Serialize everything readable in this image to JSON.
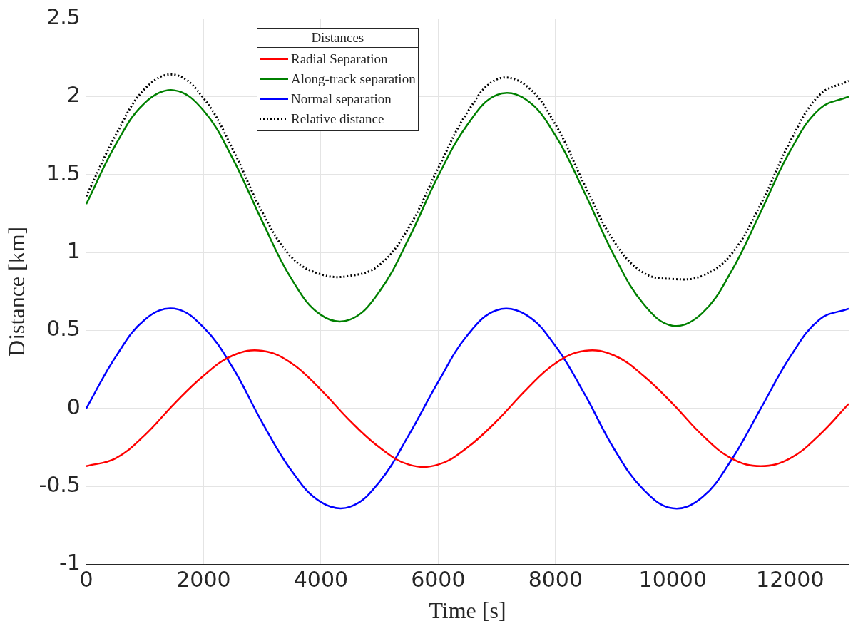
{
  "chart_data": {
    "type": "line",
    "xlabel": "Time [s]",
    "ylabel": "Distance [km]",
    "legend_title": "Distances",
    "legend": "top left",
    "grid": true,
    "marker": "none",
    "x": [
      0,
      500,
      1000,
      1500,
      2000,
      2500,
      3000,
      3500,
      4000,
      4500,
      5000,
      5500,
      6000,
      6500,
      7000,
      7500,
      8000,
      8500,
      9000,
      9500,
      10000,
      10500,
      11000,
      11500,
      12000,
      12500,
      13000
    ],
    "xlim": [
      0,
      13000
    ],
    "xticks": [
      0,
      2000,
      4000,
      6000,
      8000,
      10000,
      12000
    ],
    "ylim": [
      -1,
      2.5
    ],
    "yticks": [
      -1,
      -0.5,
      0,
      0.5,
      1,
      1.5,
      2,
      2.5
    ],
    "series": [
      {
        "name": "Radial Separation",
        "color": "#ff0000",
        "line_style": "solid",
        "values": [
          -0.37,
          -0.32,
          -0.17,
          0.03,
          0.21,
          0.34,
          0.37,
          0.29,
          0.12,
          -0.08,
          -0.25,
          -0.36,
          -0.36,
          -0.25,
          -0.08,
          0.12,
          0.29,
          0.37,
          0.34,
          0.21,
          0.03,
          -0.17,
          -0.32,
          -0.37,
          -0.32,
          -0.17,
          0.03
        ]
      },
      {
        "name": "Along-track separation",
        "color": "#008000",
        "line_style": "solid",
        "values": [
          1.31,
          1.69,
          1.96,
          2.04,
          1.91,
          1.6,
          1.2,
          0.83,
          0.6,
          0.57,
          0.75,
          1.09,
          1.49,
          1.82,
          2.01,
          1.98,
          1.75,
          1.38,
          0.98,
          0.67,
          0.53,
          0.61,
          0.88,
          1.26,
          1.65,
          1.92,
          2.0
        ]
      },
      {
        "name": "Normal separation",
        "color": "#0000ff",
        "line_style": "solid",
        "values": [
          0,
          0.33,
          0.57,
          0.64,
          0.52,
          0.26,
          -0.09,
          -0.4,
          -0.6,
          -0.63,
          -0.47,
          -0.17,
          0.17,
          0.47,
          0.63,
          0.6,
          0.4,
          0.09,
          -0.26,
          -0.52,
          -0.64,
          -0.57,
          -0.33,
          0,
          0.33,
          0.57,
          0.64
        ]
      },
      {
        "name": "Relative distance",
        "color": "#000000",
        "line_style": "dotted",
        "values": [
          1.36,
          1.75,
          2.05,
          2.14,
          1.99,
          1.66,
          1.26,
          0.97,
          0.86,
          0.85,
          0.92,
          1.16,
          1.54,
          1.9,
          2.11,
          2.07,
          1.82,
          1.43,
          1.07,
          0.87,
          0.83,
          0.85,
          0.99,
          1.31,
          1.71,
          2.01,
          2.1
        ]
      }
    ]
  }
}
